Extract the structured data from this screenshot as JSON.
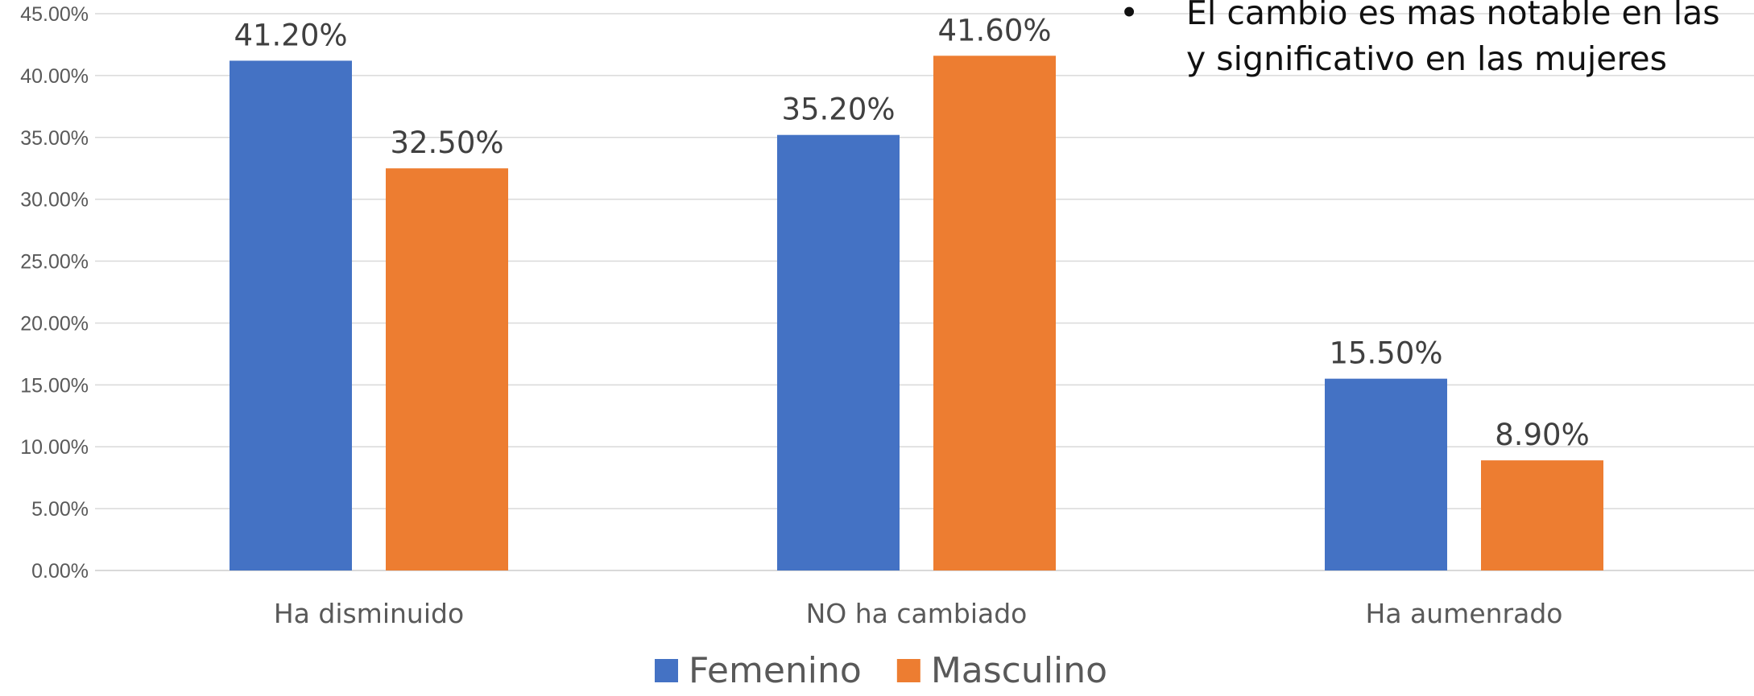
{
  "chart_data": {
    "type": "bar",
    "title": "",
    "xlabel": "",
    "ylabel": "",
    "categories": [
      "Ha disminuido",
      "NO ha cambiado",
      "Ha aumenrado"
    ],
    "series": [
      {
        "name": "Femenino",
        "values": [
          41.2,
          35.2,
          15.5
        ],
        "labels": [
          "41.20%",
          "35.20%",
          "15.50%"
        ],
        "color": "#4472C4"
      },
      {
        "name": "Masculino",
        "values": [
          32.5,
          41.6,
          8.9
        ],
        "labels": [
          "32.50%",
          "41.60%",
          "8.90%"
        ],
        "color": "#ED7D31"
      }
    ],
    "ylim": [
      0,
      45
    ],
    "yticks": [
      "0.00%",
      "5.00%",
      "10.00%",
      "15.00%",
      "20.00%",
      "25.00%",
      "30.00%",
      "35.00%",
      "40.00%",
      "45.00%"
    ],
    "grid": true,
    "legend_position": "bottom",
    "gridline_color": "#D9D9D9",
    "text_color": "#595959",
    "data_label_color": "#404040"
  },
  "annotation": {
    "bullet": "•",
    "lines": [
      "El cambio es mas notable en las",
      "y significativo en las mujeres"
    ]
  }
}
